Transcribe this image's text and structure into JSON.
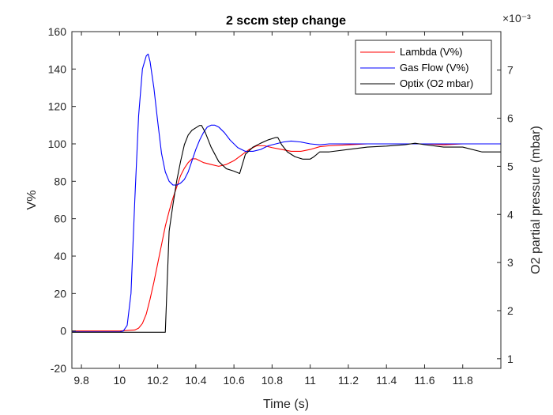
{
  "chart_data": {
    "type": "line",
    "title": "2 sccm step change",
    "xlabel": "Time (s)",
    "ylabel_left": "V%",
    "ylabel_right": "O2 partial pressure (mbar)",
    "right_axis_exponent": "×10⁻³",
    "xlim": [
      9.75,
      12.0
    ],
    "ylim_left": [
      -20,
      160
    ],
    "ylim_right": [
      0.8,
      7.8
    ],
    "x_ticks": [
      "9.8",
      "10",
      "10.2",
      "10.4",
      "10.6",
      "10.8",
      "11",
      "11.2",
      "11.4",
      "11.6",
      "11.8"
    ],
    "y_ticks_left": [
      "-20",
      "0",
      "20",
      "40",
      "60",
      "80",
      "100",
      "120",
      "140",
      "160"
    ],
    "y_ticks_right": [
      "1",
      "2",
      "3",
      "4",
      "5",
      "6",
      "7"
    ],
    "grid": false,
    "legend_position": "top-right",
    "series": [
      {
        "name": "Lambda (V%)",
        "axis": "left",
        "color": "#ff0000",
        "x": [
          9.75,
          10.0,
          10.08,
          10.1,
          10.12,
          10.14,
          10.16,
          10.18,
          10.2,
          10.22,
          10.24,
          10.26,
          10.28,
          10.3,
          10.32,
          10.34,
          10.36,
          10.38,
          10.4,
          10.42,
          10.44,
          10.48,
          10.52,
          10.56,
          10.6,
          10.64,
          10.68,
          10.72,
          10.76,
          10.8,
          10.85,
          10.9,
          10.95,
          11.0,
          11.05,
          11.1,
          11.2,
          11.3,
          11.4,
          11.5,
          11.6,
          11.7,
          11.8,
          11.9,
          12.0
        ],
        "values": [
          0,
          0,
          0.5,
          1.5,
          4,
          9,
          17,
          26,
          36,
          46,
          56,
          64,
          71,
          77,
          83,
          87,
          90,
          92,
          92,
          91,
          90,
          89,
          88,
          89,
          91,
          94,
          97,
          99,
          99,
          98,
          97,
          96,
          96,
          97,
          98.5,
          99,
          99.5,
          100,
          100,
          100,
          100,
          99.5,
          100,
          100,
          100
        ]
      },
      {
        "name": "Gas Flow (V%)",
        "axis": "left",
        "color": "#0000ff",
        "x": [
          9.75,
          10.0,
          10.02,
          10.04,
          10.06,
          10.08,
          10.1,
          10.12,
          10.14,
          10.15,
          10.16,
          10.18,
          10.2,
          10.22,
          10.24,
          10.26,
          10.28,
          10.3,
          10.32,
          10.34,
          10.36,
          10.38,
          10.4,
          10.42,
          10.44,
          10.46,
          10.48,
          10.5,
          10.52,
          10.55,
          10.58,
          10.62,
          10.66,
          10.7,
          10.74,
          10.78,
          10.82,
          10.86,
          10.9,
          10.95,
          11.0,
          11.05,
          11.1,
          11.2,
          11.3,
          11.4,
          11.5,
          11.6,
          11.7,
          11.8,
          11.9,
          12.0
        ],
        "values": [
          -0.5,
          -0.5,
          0,
          3,
          20,
          70,
          115,
          140,
          147,
          148,
          144,
          130,
          112,
          95,
          85,
          80,
          78,
          78,
          79,
          81,
          85,
          91,
          97,
          102,
          106,
          109,
          110,
          110,
          109,
          106,
          102,
          98,
          96,
          96,
          97,
          99,
          100,
          101,
          101.5,
          101,
          100,
          99.5,
          100,
          100,
          100,
          100,
          100,
          100,
          100,
          100,
          100,
          100
        ]
      },
      {
        "name": "Optix (O2 mbar)",
        "axis": "right",
        "color": "#000000",
        "x": [
          9.75,
          10.0,
          10.1,
          10.2,
          10.22,
          10.24,
          10.26,
          10.28,
          10.3,
          10.32,
          10.34,
          10.36,
          10.38,
          10.4,
          10.42,
          10.43,
          10.45,
          10.48,
          10.52,
          10.56,
          10.6,
          10.63,
          10.66,
          10.7,
          10.74,
          10.78,
          10.82,
          10.83,
          10.85,
          10.88,
          10.92,
          10.96,
          11.0,
          11.02,
          11.05,
          11.1,
          11.2,
          11.3,
          11.4,
          11.5,
          11.55,
          11.6,
          11.7,
          11.8,
          11.9,
          12.0
        ],
        "values": [
          0.00155,
          0.00155,
          0.00155,
          0.00155,
          0.00155,
          0.00155,
          0.00365,
          0.0042,
          0.0047,
          0.0051,
          0.00545,
          0.00565,
          0.00575,
          0.0058,
          0.00585,
          0.00585,
          0.0057,
          0.0054,
          0.0051,
          0.00495,
          0.0049,
          0.00485,
          0.00525,
          0.0054,
          0.00548,
          0.00555,
          0.0056,
          0.0056,
          0.00545,
          0.0053,
          0.0052,
          0.00515,
          0.00515,
          0.0052,
          0.0053,
          0.0053,
          0.00535,
          0.0054,
          0.00542,
          0.00545,
          0.00548,
          0.00545,
          0.0054,
          0.0054,
          0.0053,
          0.0053
        ]
      }
    ]
  }
}
